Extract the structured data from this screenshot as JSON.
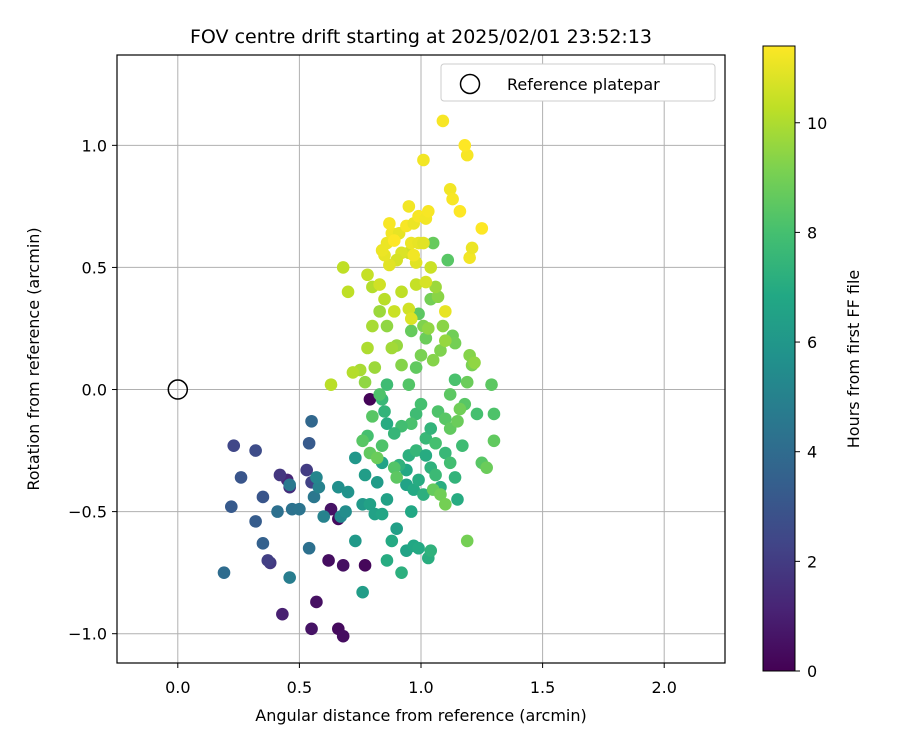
{
  "chart_data": {
    "type": "scatter",
    "title": "FOV centre drift starting at 2025/02/01 23:52:13",
    "xlabel": "Angular distance from reference (arcmin)",
    "ylabel": "Rotation from reference (arcmin)",
    "xlim": [
      -0.25,
      2.25
    ],
    "ylim": [
      -1.12,
      1.37
    ],
    "xticks": [
      0.0,
      0.5,
      1.0,
      1.5,
      2.0
    ],
    "xtick_labels": [
      "0.0",
      "0.5",
      "1.0",
      "1.5",
      "2.0"
    ],
    "yticks": [
      -1.0,
      -0.5,
      0.0,
      0.5,
      1.0
    ],
    "ytick_labels": [
      "−1.0",
      "−0.5",
      "0.0",
      "0.5",
      "1.0"
    ],
    "grid": true,
    "legend": {
      "placement": "top-right",
      "entries": [
        "Reference platepar"
      ]
    },
    "reference_point": {
      "x": 0.0,
      "y": 0.0,
      "marker": "open-circle",
      "color": "#000000"
    },
    "colorbar": {
      "label": "Hours from first FF file",
      "colormap": "viridis",
      "range": [
        0,
        11.4
      ],
      "ticks": [
        0,
        2,
        4,
        6,
        8,
        10
      ],
      "tick_labels": [
        "0",
        "2",
        "4",
        "6",
        "8",
        "10"
      ]
    },
    "points": [
      [
        0.66,
        -0.98,
        0.3
      ],
      [
        0.68,
        -1.01,
        0.4
      ],
      [
        0.57,
        -0.87,
        0.5
      ],
      [
        0.62,
        -0.7,
        0.4
      ],
      [
        0.68,
        -0.72,
        0.5
      ],
      [
        0.77,
        -0.72,
        0.2
      ],
      [
        0.55,
        -0.98,
        0.6
      ],
      [
        0.79,
        -0.04,
        0.1
      ],
      [
        0.63,
        -0.49,
        0.6
      ],
      [
        0.66,
        -0.53,
        0.3
      ],
      [
        0.43,
        -0.92,
        1.0
      ],
      [
        0.45,
        -0.37,
        1.2
      ],
      [
        0.46,
        -0.4,
        1.5
      ],
      [
        0.42,
        -0.35,
        1.8
      ],
      [
        0.38,
        -0.71,
        1.9
      ],
      [
        0.37,
        -0.7,
        2.1
      ],
      [
        0.53,
        -0.33,
        2.0
      ],
      [
        0.55,
        -0.38,
        2.2
      ],
      [
        0.23,
        -0.23,
        2.4
      ],
      [
        0.32,
        -0.25,
        2.6
      ],
      [
        0.26,
        -0.36,
        3.0
      ],
      [
        0.22,
        -0.48,
        3.2
      ],
      [
        0.35,
        -0.44,
        3.0
      ],
      [
        0.32,
        -0.54,
        3.3
      ],
      [
        0.35,
        -0.63,
        3.5
      ],
      [
        0.54,
        -0.22,
        3.2
      ],
      [
        0.55,
        -0.13,
        3.8
      ],
      [
        0.19,
        -0.75,
        4.0
      ],
      [
        0.41,
        -0.5,
        4.2
      ],
      [
        0.47,
        -0.49,
        4.3
      ],
      [
        0.5,
        -0.49,
        4.4
      ],
      [
        0.46,
        -0.39,
        4.6
      ],
      [
        0.54,
        -0.65,
        4.2
      ],
      [
        0.56,
        -0.44,
        4.5
      ],
      [
        0.46,
        -0.77,
        4.8
      ],
      [
        0.58,
        -0.4,
        5.0
      ],
      [
        0.57,
        -0.36,
        5.2
      ],
      [
        0.6,
        -0.52,
        5.0
      ],
      [
        0.67,
        -0.52,
        5.3
      ],
      [
        0.69,
        -0.5,
        5.5
      ],
      [
        0.66,
        -0.4,
        5.6
      ],
      [
        0.7,
        -0.42,
        5.8
      ],
      [
        0.73,
        -0.28,
        6.0
      ],
      [
        0.73,
        -0.62,
        6.1
      ],
      [
        0.76,
        -0.83,
        6.3
      ],
      [
        0.76,
        -0.47,
        6.1
      ],
      [
        0.79,
        -0.47,
        6.5
      ],
      [
        0.81,
        -0.51,
        6.5
      ],
      [
        0.84,
        -0.51,
        6.7
      ],
      [
        0.82,
        -0.38,
        6.2
      ],
      [
        0.77,
        -0.35,
        6.3
      ],
      [
        0.84,
        -0.3,
        6.6
      ],
      [
        0.86,
        -0.45,
        6.5
      ],
      [
        0.88,
        -0.62,
        6.9
      ],
      [
        0.9,
        -0.57,
        6.4
      ],
      [
        0.86,
        -0.7,
        7.0
      ],
      [
        0.92,
        -0.75,
        7.2
      ],
      [
        0.94,
        -0.66,
        6.6
      ],
      [
        0.97,
        -0.64,
        6.8
      ],
      [
        0.99,
        -0.65,
        6.9
      ],
      [
        1.03,
        -0.69,
        7.1
      ],
      [
        1.04,
        -0.66,
        7.3
      ],
      [
        0.96,
        -0.5,
        6.8
      ],
      [
        0.94,
        -0.39,
        6.6
      ],
      [
        0.97,
        -0.41,
        6.9
      ],
      [
        0.99,
        -0.37,
        7.0
      ],
      [
        1.01,
        -0.43,
        7.2
      ],
      [
        0.94,
        -0.33,
        6.8
      ],
      [
        0.91,
        -0.31,
        7.3
      ],
      [
        0.95,
        -0.27,
        7.2
      ],
      [
        0.98,
        -0.25,
        7.5
      ],
      [
        1.02,
        -0.27,
        7.0
      ],
      [
        1.04,
        -0.32,
        7.3
      ],
      [
        1.06,
        -0.35,
        7.7
      ],
      [
        1.08,
        -0.4,
        7.1
      ],
      [
        1.1,
        -0.26,
        7.6
      ],
      [
        1.12,
        -0.3,
        7.9
      ],
      [
        1.14,
        -0.36,
        7.4
      ],
      [
        1.15,
        -0.45,
        7.0
      ],
      [
        1.17,
        -0.23,
        7.8
      ],
      [
        1.02,
        -0.2,
        7.6
      ],
      [
        1.04,
        -0.16,
        7.4
      ],
      [
        1.06,
        -0.22,
        8.0
      ],
      [
        0.98,
        -0.1,
        7.8
      ],
      [
        1.0,
        -0.06,
        8.0
      ],
      [
        0.96,
        -0.14,
        8.1
      ],
      [
        0.92,
        -0.15,
        7.9
      ],
      [
        0.89,
        -0.18,
        7.5
      ],
      [
        0.86,
        -0.14,
        7.0
      ],
      [
        0.85,
        -0.09,
        7.4
      ],
      [
        0.84,
        -0.04,
        7.6
      ],
      [
        0.86,
        0.02,
        7.8
      ],
      [
        0.83,
        -0.02,
        8.2
      ],
      [
        0.8,
        -0.11,
        8.4
      ],
      [
        0.78,
        -0.19,
        8.0
      ],
      [
        0.76,
        -0.21,
        8.4
      ],
      [
        0.79,
        -0.26,
        8.6
      ],
      [
        0.82,
        -0.28,
        8.8
      ],
      [
        0.84,
        -0.23,
        8.2
      ],
      [
        0.89,
        -0.32,
        8.3
      ],
      [
        0.9,
        -0.36,
        8.5
      ],
      [
        1.05,
        -0.41,
        8.7
      ],
      [
        1.08,
        -0.43,
        8.9
      ],
      [
        1.1,
        -0.47,
        9.0
      ],
      [
        1.07,
        -0.09,
        8.2
      ],
      [
        1.1,
        -0.12,
        8.4
      ],
      [
        1.12,
        -0.16,
        8.6
      ],
      [
        1.15,
        -0.13,
        8.8
      ],
      [
        1.18,
        -0.06,
        8.4
      ],
      [
        1.16,
        -0.08,
        8.9
      ],
      [
        1.14,
        0.04,
        8.1
      ],
      [
        1.12,
        -0.02,
        8.5
      ],
      [
        1.19,
        0.03,
        8.8
      ],
      [
        1.23,
        -0.1,
        8.0
      ],
      [
        1.25,
        -0.3,
        8.4
      ],
      [
        1.27,
        -0.32,
        8.8
      ],
      [
        1.29,
        0.02,
        8.5
      ],
      [
        1.3,
        -0.1,
        8.2
      ],
      [
        1.3,
        -0.21,
        8.6
      ],
      [
        1.19,
        -0.62,
        9.0
      ],
      [
        1.21,
        0.1,
        9.1
      ],
      [
        1.2,
        0.14,
        9.3
      ],
      [
        1.22,
        0.11,
        9.5
      ],
      [
        1.13,
        0.22,
        8.9
      ],
      [
        1.14,
        0.19,
        9.0
      ],
      [
        1.08,
        0.16,
        9.2
      ],
      [
        1.09,
        0.26,
        9.4
      ],
      [
        1.1,
        0.2,
        9.6
      ],
      [
        1.05,
        0.12,
        9.3
      ],
      [
        1.0,
        0.14,
        9.1
      ],
      [
        1.02,
        0.21,
        8.8
      ],
      [
        0.98,
        0.09,
        8.6
      ],
      [
        0.95,
        0.02,
        8.3
      ],
      [
        0.96,
        0.24,
        8.7
      ],
      [
        0.99,
        0.31,
        8.5
      ],
      [
        1.01,
        0.26,
        9.2
      ],
      [
        1.03,
        0.25,
        9.5
      ],
      [
        1.04,
        0.37,
        9.0
      ],
      [
        1.07,
        0.38,
        9.4
      ],
      [
        1.06,
        0.42,
        9.7
      ],
      [
        1.11,
        0.53,
        8.4
      ],
      [
        1.05,
        0.6,
        8.7
      ],
      [
        0.92,
        0.1,
        9.3
      ],
      [
        0.9,
        0.18,
        9.6
      ],
      [
        0.88,
        0.17,
        9.8
      ],
      [
        0.86,
        0.26,
        9.5
      ],
      [
        0.83,
        0.32,
        9.7
      ],
      [
        0.8,
        0.26,
        9.9
      ],
      [
        0.78,
        0.17,
        10.0
      ],
      [
        0.75,
        0.08,
        9.9
      ],
      [
        0.72,
        0.07,
        10.1
      ],
      [
        0.77,
        0.03,
        9.5
      ],
      [
        0.81,
        0.09,
        9.7
      ],
      [
        0.63,
        0.02,
        10.2
      ],
      [
        0.7,
        0.4,
        10.3
      ],
      [
        0.68,
        0.5,
        10.3
      ],
      [
        0.78,
        0.47,
        10.4
      ],
      [
        0.8,
        0.42,
        10.1
      ],
      [
        0.83,
        0.43,
        10.6
      ],
      [
        0.85,
        0.37,
        10.2
      ],
      [
        0.89,
        0.32,
        10.5
      ],
      [
        0.92,
        0.4,
        10.3
      ],
      [
        0.95,
        0.33,
        10.6
      ],
      [
        0.96,
        0.29,
        10.8
      ],
      [
        0.98,
        0.43,
        10.4
      ],
      [
        1.02,
        0.44,
        10.7
      ],
      [
        1.04,
        0.5,
        10.5
      ],
      [
        0.98,
        0.52,
        10.9
      ],
      [
        0.95,
        0.56,
        10.6
      ],
      [
        0.92,
        0.56,
        10.8
      ],
      [
        0.9,
        0.53,
        10.7
      ],
      [
        0.87,
        0.51,
        10.9
      ],
      [
        0.85,
        0.55,
        11.0
      ],
      [
        0.86,
        0.6,
        11.1
      ],
      [
        0.88,
        0.64,
        11.2
      ],
      [
        0.91,
        0.64,
        11.0
      ],
      [
        0.94,
        0.67,
        11.3
      ],
      [
        0.97,
        0.68,
        11.1
      ],
      [
        0.99,
        0.71,
        11.3
      ],
      [
        1.02,
        0.7,
        11.2
      ],
      [
        1.03,
        0.73,
        11.3
      ],
      [
        0.95,
        0.75,
        11.2
      ],
      [
        0.87,
        0.68,
        11.3
      ],
      [
        0.96,
        0.6,
        11.1
      ],
      [
        0.99,
        0.6,
        11.0
      ],
      [
        1.01,
        0.6,
        10.9
      ],
      [
        0.97,
        0.55,
        11.2
      ],
      [
        1.1,
        0.32,
        11.0
      ],
      [
        1.12,
        0.82,
        11.2
      ],
      [
        1.13,
        0.78,
        11.3
      ],
      [
        1.16,
        0.73,
        11.4
      ],
      [
        1.2,
        0.54,
        11.2
      ],
      [
        1.21,
        0.58,
        11.1
      ],
      [
        1.25,
        0.66,
        11.4
      ],
      [
        1.19,
        0.96,
        11.3
      ],
      [
        1.18,
        1.0,
        11.4
      ],
      [
        1.09,
        1.1,
        11.3
      ],
      [
        1.01,
        0.94,
        11.2
      ],
      [
        0.89,
        0.61,
        11.4
      ],
      [
        0.84,
        0.57,
        11.1
      ]
    ]
  }
}
